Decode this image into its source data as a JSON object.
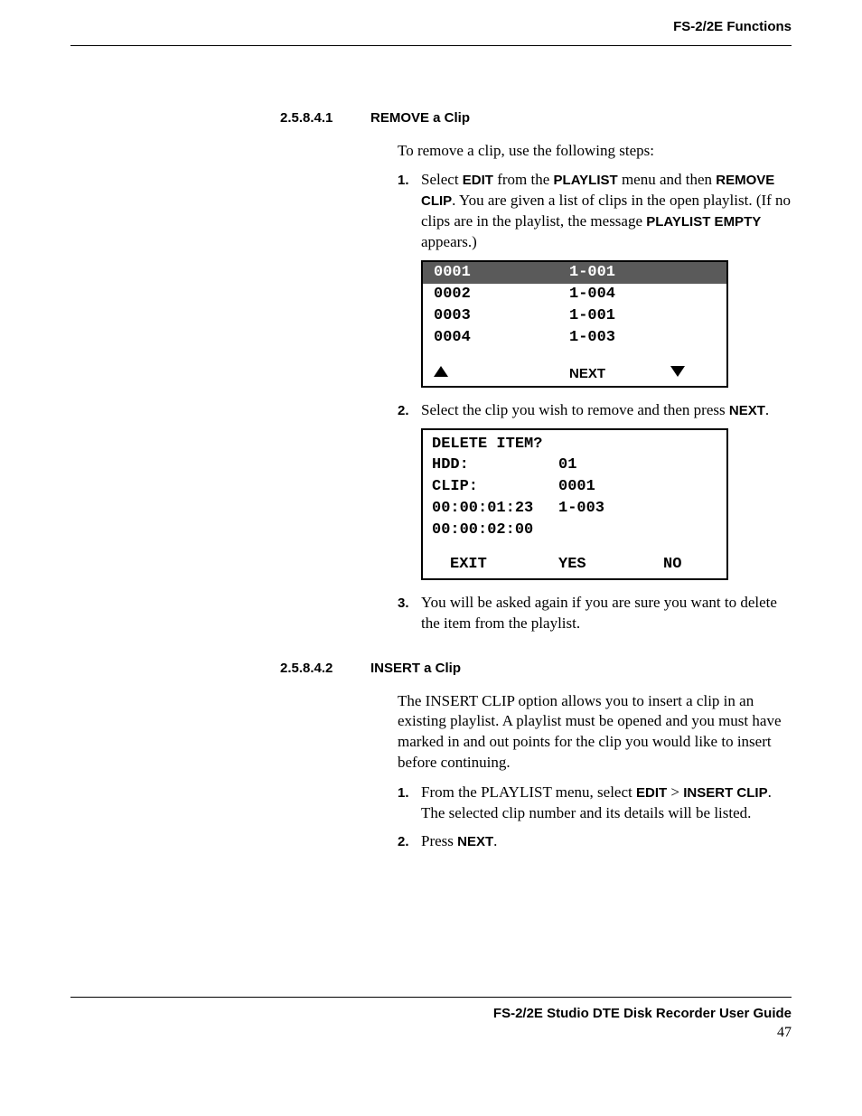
{
  "header": {
    "text": "FS-2/2E Functions"
  },
  "section1": {
    "number": "2.5.8.4.1",
    "title": "REMOVE a Clip",
    "intro": "To remove a clip, use the following steps:",
    "step1": {
      "num": "1.",
      "pre": "Select ",
      "b1": "EDIT",
      "mid1": " from the ",
      "b2": "PLAYLIST",
      "mid2": " menu and then ",
      "b3": "REMOVE CLIP",
      "mid3": ". You are given a list of clips in the open playlist. (If no clips are in the playlist, the message ",
      "b4": "PLAYLIST EMPTY",
      "post": " appears.)"
    },
    "screen1": {
      "rows": [
        {
          "c1": "0001",
          "c2": "1-001",
          "highlight": true
        },
        {
          "c1": "0002",
          "c2": "1-004",
          "highlight": false
        },
        {
          "c1": "0003",
          "c2": "1-001",
          "highlight": false
        },
        {
          "c1": "0004",
          "c2": "1-003",
          "highlight": false
        }
      ],
      "footer_next": "NEXT"
    },
    "step2": {
      "num": "2.",
      "pre": "Select the clip you wish to remove and then press ",
      "b1": "NEXT",
      "post": "."
    },
    "screen2": {
      "line1": "DELETE ITEM?",
      "line2_l": "HDD:",
      "line2_r": "01",
      "line3_l": "CLIP:",
      "line3_r": "0001",
      "line4_l": "00:00:01:23",
      "line4_r": "1-003",
      "line5_l": "00:00:02:00",
      "footer_a": "EXIT",
      "footer_b": "YES",
      "footer_c": "NO"
    },
    "step3": {
      "num": "3.",
      "text": "You will be asked again if you are sure you want to delete the item from the playlist."
    }
  },
  "section2": {
    "number": "2.5.8.4.2",
    "title": "INSERT a Clip",
    "para": "The INSERT CLIP option allows you to insert a clip in an existing playlist. A playlist must be opened and you must have marked in and out points for the clip you would like to insert before continuing.",
    "step1": {
      "num": "1.",
      "pre": "From the PLAYLIST menu, select ",
      "b1": "EDIT",
      "mid1": " > ",
      "b2": "INSERT CLIP",
      "post": ". The selected clip number and its details will be listed."
    },
    "step2": {
      "num": "2.",
      "pre": "Press ",
      "b1": "NEXT",
      "post": "."
    }
  },
  "footer": {
    "title": "FS-2/2E Studio DTE Disk Recorder User Guide",
    "page": "47"
  }
}
